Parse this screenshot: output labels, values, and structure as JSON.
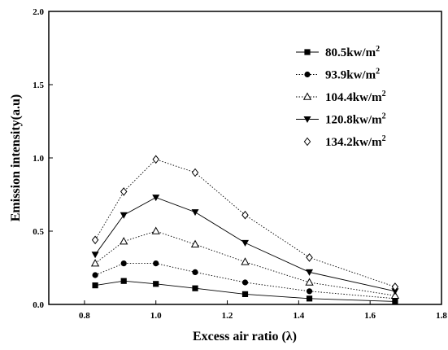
{
  "chart_data": {
    "type": "line",
    "xlabel": "Excess air ratio (λ)",
    "ylabel": "Emission intensity(a.u)",
    "xlim": [
      0.7,
      1.8
    ],
    "ylim": [
      0.0,
      2.0
    ],
    "xticks": [
      0.8,
      1.0,
      1.2,
      1.4,
      1.6,
      1.8
    ],
    "xtick_labels": [
      "0.8",
      "1.0",
      "1.2",
      "1.4",
      "1.6",
      "1.8"
    ],
    "yticks": [
      0.0,
      0.5,
      1.0,
      1.5,
      2.0
    ],
    "ytick_labels": [
      "0.0",
      "0.5",
      "1.0",
      "1.5",
      "2.0"
    ],
    "grid": false,
    "legend_position": "top-right",
    "x": [
      0.83,
      0.91,
      1.0,
      1.11,
      1.25,
      1.43,
      1.67
    ],
    "series": [
      {
        "name": "80.5kw/m",
        "sup": "2",
        "marker": "square-filled",
        "line": "solid",
        "values": [
          0.13,
          0.16,
          0.14,
          0.11,
          0.07,
          0.04,
          0.02
        ]
      },
      {
        "name": "93.9kw/m",
        "sup": "2",
        "marker": "circle-filled",
        "line": "dotted",
        "values": [
          0.2,
          0.28,
          0.28,
          0.22,
          0.15,
          0.09,
          0.04
        ]
      },
      {
        "name": "104.4kw/m",
        "sup": "2",
        "marker": "triangle-up-open",
        "line": "dotted",
        "values": [
          0.28,
          0.43,
          0.5,
          0.41,
          0.29,
          0.15,
          0.06
        ]
      },
      {
        "name": "120.8kw/m",
        "sup": "2",
        "marker": "triangle-down-filled",
        "line": "solid",
        "values": [
          0.34,
          0.61,
          0.73,
          0.63,
          0.42,
          0.22,
          0.09
        ]
      },
      {
        "name": "134.2kw/m",
        "sup": "2",
        "marker": "diamond-open",
        "line": "dotted",
        "values": [
          0.44,
          0.77,
          0.99,
          0.9,
          0.61,
          0.32,
          0.12
        ]
      }
    ]
  }
}
